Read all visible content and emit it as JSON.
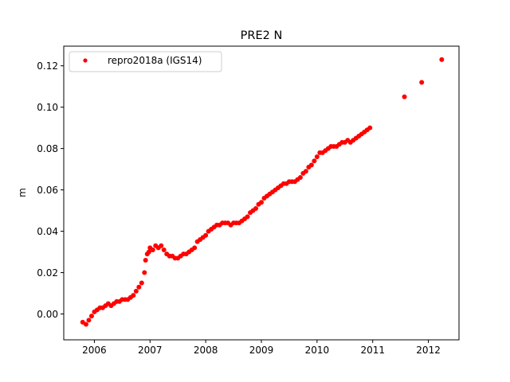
{
  "chart_data": {
    "type": "scatter",
    "title": "PRE2 N",
    "xlabel": "",
    "ylabel": "m",
    "xlim": [
      2005.45,
      2012.55
    ],
    "ylim": [
      -0.0125,
      0.1295
    ],
    "xticks": [
      2006,
      2007,
      2008,
      2009,
      2010,
      2011,
      2012
    ],
    "xtick_labels": [
      "2006",
      "2007",
      "2008",
      "2009",
      "2010",
      "2011",
      "2012"
    ],
    "yticks": [
      0.0,
      0.02,
      0.04,
      0.06,
      0.08,
      0.1,
      0.12
    ],
    "ytick_labels": [
      "0.00",
      "0.02",
      "0.04",
      "0.06",
      "0.08",
      "0.10",
      "0.12"
    ],
    "grid": false,
    "legend": {
      "position": "top-left"
    },
    "series": [
      {
        "name": "repro2018a (IGS14)",
        "color": "#ff0000",
        "marker": "circle",
        "x": [
          2005.79,
          2005.85,
          2005.9,
          2005.95,
          2006.0,
          2006.05,
          2006.1,
          2006.15,
          2006.2,
          2006.25,
          2006.3,
          2006.35,
          2006.4,
          2006.45,
          2006.5,
          2006.55,
          2006.6,
          2006.65,
          2006.7,
          2006.75,
          2006.8,
          2006.85,
          2006.9,
          2006.92,
          2006.95,
          2006.98,
          2007.0,
          2007.05,
          2007.1,
          2007.15,
          2007.2,
          2007.25,
          2007.3,
          2007.35,
          2007.4,
          2007.45,
          2007.5,
          2007.55,
          2007.6,
          2007.65,
          2007.7,
          2007.75,
          2007.8,
          2007.85,
          2007.9,
          2007.95,
          2008.0,
          2008.05,
          2008.1,
          2008.15,
          2008.2,
          2008.25,
          2008.3,
          2008.35,
          2008.4,
          2008.45,
          2008.5,
          2008.55,
          2008.6,
          2008.65,
          2008.7,
          2008.75,
          2008.8,
          2008.85,
          2008.9,
          2008.95,
          2009.0,
          2009.05,
          2009.1,
          2009.15,
          2009.2,
          2009.25,
          2009.3,
          2009.35,
          2009.4,
          2009.45,
          2009.5,
          2009.55,
          2009.6,
          2009.65,
          2009.7,
          2009.75,
          2009.8,
          2009.85,
          2009.9,
          2009.95,
          2010.0,
          2010.05,
          2010.1,
          2010.15,
          2010.2,
          2010.25,
          2010.3,
          2010.35,
          2010.4,
          2010.45,
          2010.5,
          2010.55,
          2010.6,
          2010.65,
          2010.7,
          2010.75,
          2010.8,
          2010.85,
          2010.9,
          2010.95,
          2011.57,
          2011.88,
          2012.24
        ],
        "y": [
          -0.004,
          -0.005,
          -0.003,
          -0.001,
          0.001,
          0.002,
          0.003,
          0.003,
          0.004,
          0.005,
          0.004,
          0.005,
          0.006,
          0.006,
          0.007,
          0.007,
          0.007,
          0.008,
          0.009,
          0.011,
          0.013,
          0.015,
          0.02,
          0.026,
          0.029,
          0.03,
          0.032,
          0.031,
          0.033,
          0.032,
          0.033,
          0.031,
          0.029,
          0.028,
          0.028,
          0.027,
          0.027,
          0.028,
          0.029,
          0.029,
          0.03,
          0.031,
          0.032,
          0.035,
          0.036,
          0.037,
          0.038,
          0.04,
          0.041,
          0.042,
          0.043,
          0.043,
          0.044,
          0.044,
          0.044,
          0.043,
          0.044,
          0.044,
          0.044,
          0.045,
          0.046,
          0.047,
          0.049,
          0.05,
          0.051,
          0.053,
          0.054,
          0.056,
          0.057,
          0.058,
          0.059,
          0.06,
          0.061,
          0.062,
          0.063,
          0.063,
          0.064,
          0.064,
          0.064,
          0.065,
          0.066,
          0.068,
          0.069,
          0.071,
          0.072,
          0.074,
          0.076,
          0.078,
          0.078,
          0.079,
          0.08,
          0.081,
          0.081,
          0.081,
          0.082,
          0.083,
          0.083,
          0.084,
          0.083,
          0.084,
          0.085,
          0.086,
          0.087,
          0.088,
          0.089,
          0.09,
          0.105,
          0.112,
          0.123
        ]
      }
    ]
  }
}
